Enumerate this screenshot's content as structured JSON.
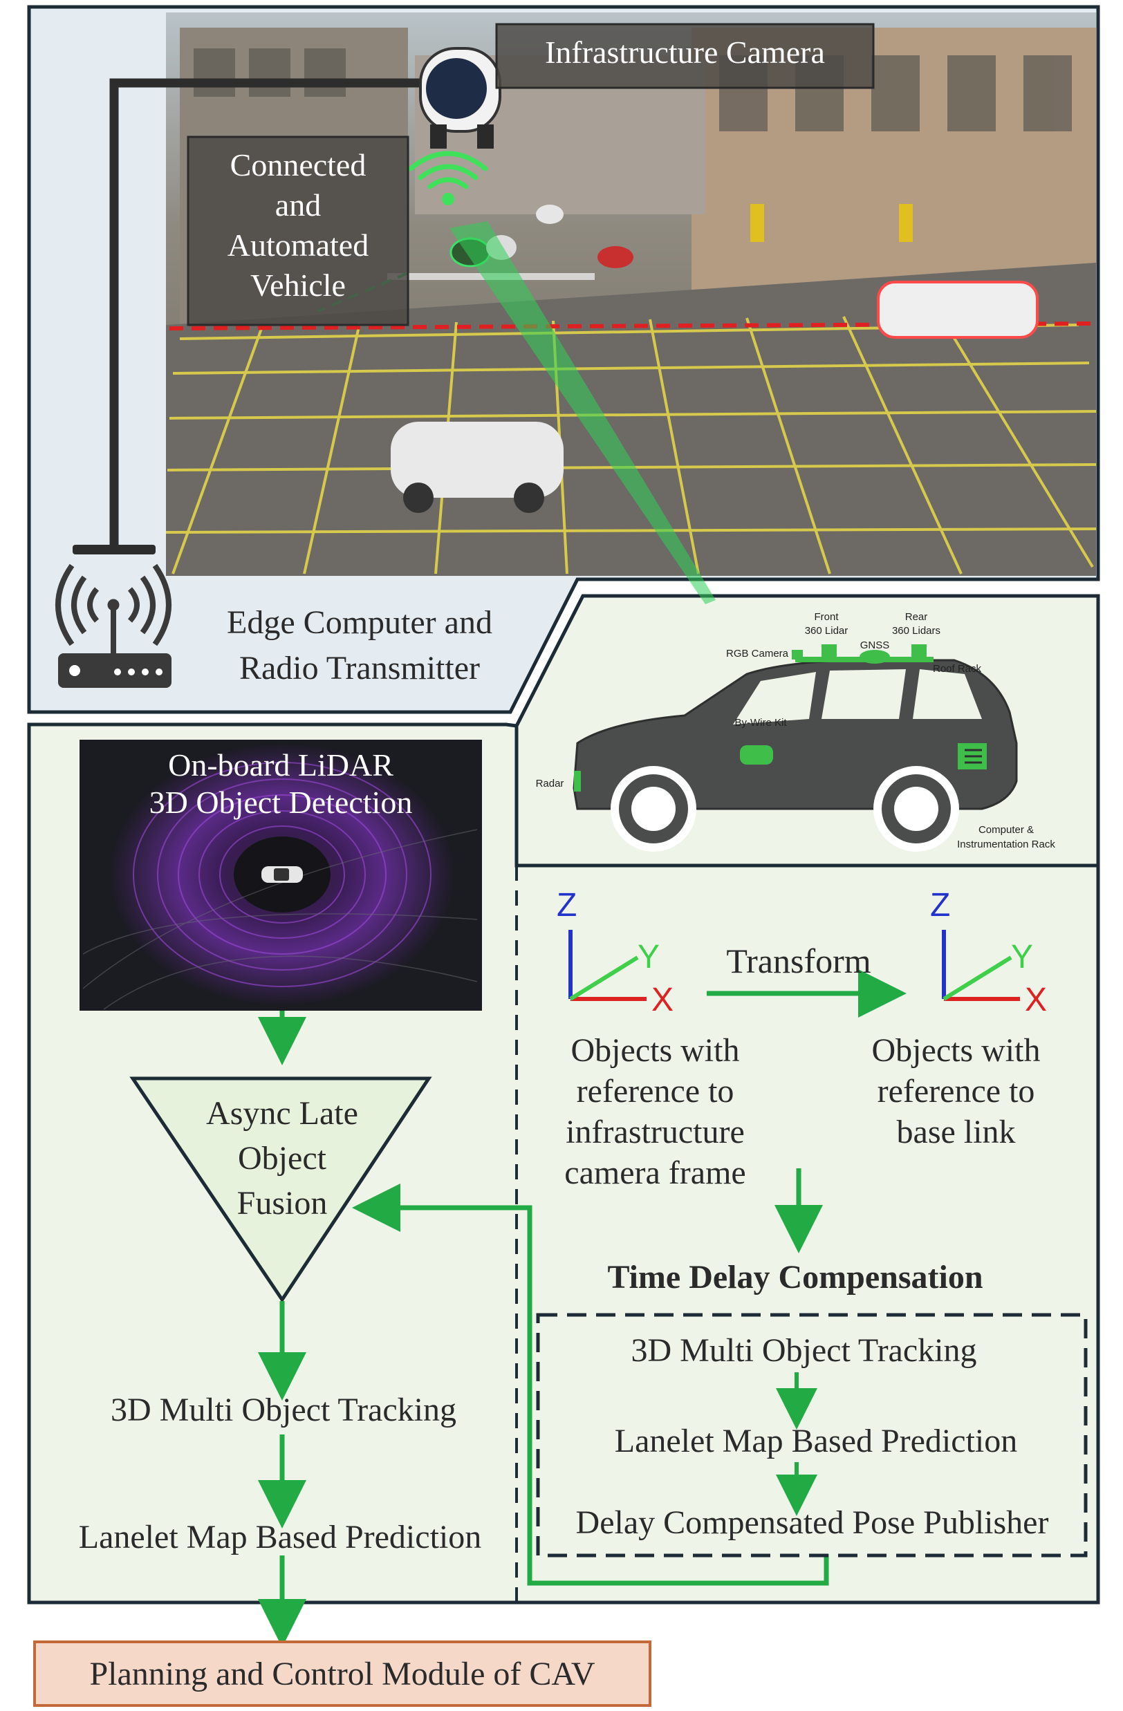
{
  "scene": {
    "infrastructure_camera_label": "Infrastructure Camera",
    "cav_label_lines": [
      "Connected",
      "and",
      "Automated",
      "Vehicle"
    ],
    "edge_label_lines": [
      "Edge Computer and",
      "Radio Transmitter"
    ]
  },
  "vehicle": {
    "labels": {
      "front_lidar": [
        "Front",
        "360 Lidar"
      ],
      "rear_lidars": [
        "Rear",
        "360 Lidars"
      ],
      "gnss": "GNSS",
      "rgb_camera": "RGB Camera",
      "roof_rack": "Roof Rack",
      "by_wire_kit": "By-Wire Kit",
      "radar": "Radar",
      "computer_rack": [
        "Computer &",
        "Instrumentation Rack"
      ]
    }
  },
  "onboard": {
    "lidar_title_lines": [
      "On-board LiDAR",
      "3D Object Detection"
    ],
    "fusion_lines": [
      "Async Late",
      "Object",
      "Fusion"
    ],
    "tracking": "3D Multi Object Tracking",
    "prediction": "Lanelet Map Based Prediction",
    "planning": "Planning and Control Module of CAV"
  },
  "transform": {
    "axis_z": "Z",
    "axis_y": "Y",
    "axis_x": "X",
    "arrow_label": "Transform",
    "left_caption_lines": [
      "Objects with",
      "reference to",
      "infrastructure",
      "camera frame"
    ],
    "right_caption_lines": [
      "Objects with",
      "reference to",
      "base link"
    ]
  },
  "delay": {
    "title": "Time Delay Compensation",
    "tracking": "3D Multi Object Tracking",
    "prediction": "Lanelet Map Based Prediction",
    "publisher": "Delay Compensated Pose Publisher"
  },
  "colors": {
    "panel_blue": "#e4ecf1",
    "panel_green": "#eef4e8",
    "border": "#1c2b36",
    "arrow_green": "#22aa44",
    "triangle_fill": "#e6f2dc",
    "planning_fill": "#f6d8c8",
    "planning_border": "#c46a3a"
  }
}
